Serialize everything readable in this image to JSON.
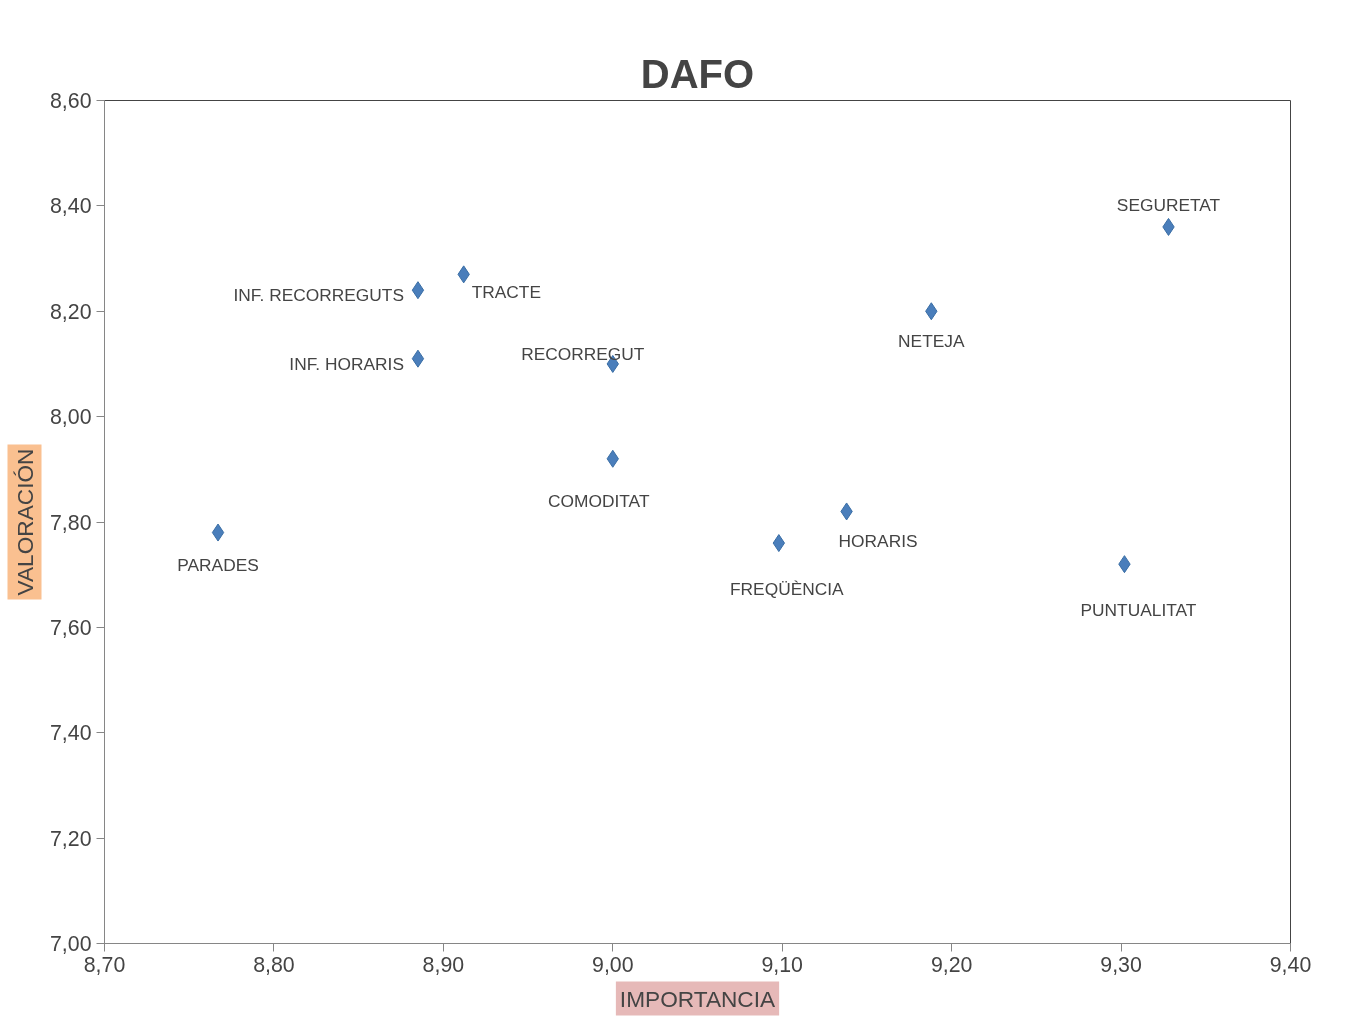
{
  "chart_data": {
    "type": "scatter",
    "title": "DAFO",
    "xlabel": "IMPORTANCIA",
    "ylabel": "VALORACIÓN",
    "series": [
      {
        "color": "#4a7ebb",
        "x": [
          9.328,
          9.188,
          8.912,
          8.885,
          8.885,
          9.0,
          9.0,
          8.767,
          9.098,
          9.138,
          9.302
        ],
        "values": [
          8.36,
          8.2,
          8.27,
          8.24,
          8.11,
          8.1,
          7.92,
          7.78,
          7.76,
          7.82,
          7.72
        ]
      }
    ],
    "annotations": [
      {
        "text": "SEGURETAT",
        "x": 9.328,
        "y": 8.36
      },
      {
        "text": "NETEJA",
        "x": 9.188,
        "y": 8.2
      },
      {
        "text": "TRACTE",
        "x": 8.912,
        "y": 8.27
      },
      {
        "text": "INF. RECORREGUTS",
        "x": 8.885,
        "y": 8.24
      },
      {
        "text": "INF. HORARIS",
        "x": 8.885,
        "y": 8.11
      },
      {
        "text": "RECORREGUT",
        "x": 9.0,
        "y": 8.1
      },
      {
        "text": "COMODITAT",
        "x": 9.0,
        "y": 7.92
      },
      {
        "text": "PARADES",
        "x": 8.767,
        "y": 7.78
      },
      {
        "text": "FREQÜÈNCIA",
        "x": 9.098,
        "y": 7.76
      },
      {
        "text": "HORARIS",
        "x": 9.138,
        "y": 7.82
      },
      {
        "text": "PUNTUALITAT",
        "x": 9.302,
        "y": 7.72
      }
    ],
    "xlim": [
      8.7,
      9.4
    ],
    "xticks": [
      {
        "value": 8.7,
        "label": "8,70"
      },
      {
        "value": 8.8,
        "label": "8,80"
      },
      {
        "value": 8.9,
        "label": "8,90"
      },
      {
        "value": 9.0,
        "label": "9,00"
      },
      {
        "value": 9.1,
        "label": "9,10"
      },
      {
        "value": 9.2,
        "label": "9,20"
      },
      {
        "value": 9.3,
        "label": "9,30"
      },
      {
        "value": 9.4,
        "label": "9,40"
      }
    ],
    "ylim": [
      7.0,
      8.6
    ],
    "yticks": [
      {
        "value": 7.0,
        "label": "7,00"
      },
      {
        "value": 7.2,
        "label": "7,20"
      },
      {
        "value": 7.4,
        "label": "7,40"
      },
      {
        "value": 7.6,
        "label": "7,60"
      },
      {
        "value": 7.8,
        "label": "7,80"
      },
      {
        "value": 8.0,
        "label": "8,00"
      },
      {
        "value": 8.2,
        "label": "8,20"
      },
      {
        "value": 8.4,
        "label": "8,40"
      },
      {
        "value": 8.6,
        "label": "8,60"
      }
    ],
    "marker": "diamond",
    "grid": false
  }
}
